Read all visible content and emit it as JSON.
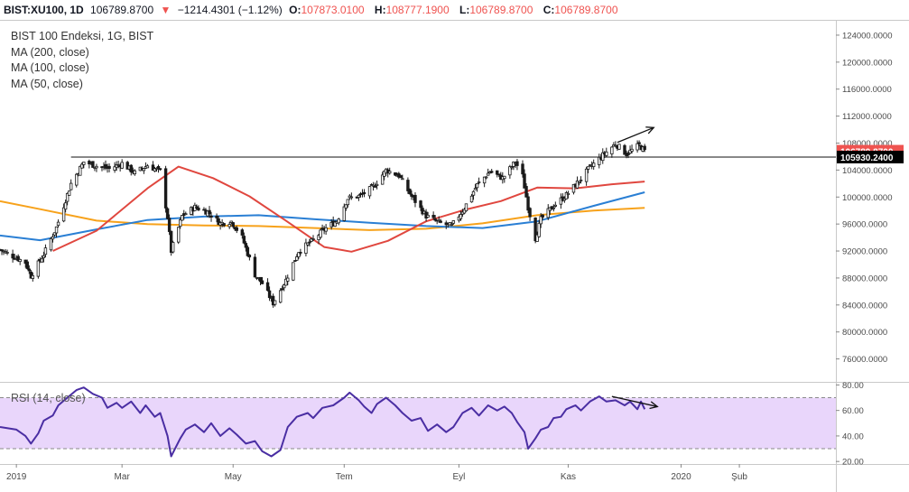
{
  "header": {
    "symbol": "BIST:XU100, 1D",
    "last": "106789.8700",
    "arrow": "▼",
    "change": "−1214.4301 (−1.12%)",
    "open_label": "O:",
    "open": "107873.0100",
    "high_label": "H:",
    "high": "108777.1900",
    "low_label": "L:",
    "low": "106789.8700",
    "close_label": "C:",
    "close": "106789.8700"
  },
  "legend": {
    "title": "BIST 100 Endeksi, 1G, BIST",
    "ma200": "MA (200, close)",
    "ma100": "MA (100, close)",
    "ma50": "MA (50, close)",
    "rsi": "RSI (14, close)"
  },
  "colors": {
    "ma200": "#f7a21b",
    "ma100": "#2a7fd4",
    "ma50": "#e0473f",
    "rsi": "#4a2ea3",
    "rsi_band": "#e9d6fb",
    "up": "#ffffff",
    "down": "#1a1a1a",
    "price_badge": "#ef5350",
    "level_badge": "#000000"
  },
  "chart_data": [
    {
      "type": "candlestick",
      "title": "BIST 100 Endeksi, 1G, BIST",
      "y_ticks": [
        "124000.0000",
        "120000.0000",
        "116000.0000",
        "112000.0000",
        "108000.0000",
        "104000.0000",
        "100000.0000",
        "96000.0000",
        "92000.0000",
        "88000.0000",
        "84000.0000",
        "80000.0000",
        "76000.0000"
      ],
      "y_values": [
        124000,
        120000,
        116000,
        112000,
        108000,
        104000,
        100000,
        96000,
        92000,
        88000,
        84000,
        80000,
        76000
      ],
      "ylim": [
        72600,
        126000
      ],
      "x_ticks": [
        "2019",
        "Mar",
        "May",
        "Tem",
        "Eyl",
        "Kas",
        "2020",
        "Şub"
      ],
      "x_tick_positions": [
        "2019-01-02",
        "2019-03-01",
        "2019-05-01",
        "2019-07-01",
        "2019-09-02",
        "2019-11-01",
        "2020-01-02",
        "2020-02-03"
      ],
      "x_range": [
        "2018-12-24",
        "2020-03-27"
      ],
      "last_price_label": "106789.8700",
      "level_label": "105930.2400",
      "level_value": 105930.24,
      "level_range": [
        "2019-02-01",
        "2020-03-27"
      ],
      "close_series": [
        [
          "2018-12-24",
          92200
        ],
        [
          "2019-01-07",
          90300
        ],
        [
          "2019-01-10",
          88300
        ],
        [
          "2019-01-17",
          91500
        ],
        [
          "2019-01-24",
          95500
        ],
        [
          "2019-02-01",
          102000
        ],
        [
          "2019-02-08",
          105200
        ],
        [
          "2019-02-15",
          104600
        ],
        [
          "2019-02-22",
          104200
        ],
        [
          "2019-03-01",
          105000
        ],
        [
          "2019-03-08",
          103600
        ],
        [
          "2019-03-15",
          104700
        ],
        [
          "2019-03-22",
          103800
        ],
        [
          "2019-03-26",
          97000
        ],
        [
          "2019-03-28",
          92000
        ],
        [
          "2019-04-03",
          97200
        ],
        [
          "2019-04-10",
          98500
        ],
        [
          "2019-04-17",
          97800
        ],
        [
          "2019-04-24",
          96100
        ],
        [
          "2019-04-30",
          96400
        ],
        [
          "2019-05-06",
          94000
        ],
        [
          "2019-05-13",
          88500
        ],
        [
          "2019-05-17",
          87200
        ],
        [
          "2019-05-23",
          84300
        ],
        [
          "2019-05-30",
          87700
        ],
        [
          "2019-06-06",
          92000
        ],
        [
          "2019-06-13",
          93400
        ],
        [
          "2019-06-20",
          95200
        ],
        [
          "2019-06-27",
          96500
        ],
        [
          "2019-07-03",
          99800
        ],
        [
          "2019-07-10",
          100200
        ],
        [
          "2019-07-17",
          101500
        ],
        [
          "2019-07-24",
          104000
        ],
        [
          "2019-07-31",
          103200
        ],
        [
          "2019-08-07",
          100100
        ],
        [
          "2019-08-15",
          97200
        ],
        [
          "2019-08-22",
          96200
        ],
        [
          "2019-08-29",
          95700
        ],
        [
          "2019-09-05",
          98400
        ],
        [
          "2019-09-12",
          101800
        ],
        [
          "2019-09-19",
          103800
        ],
        [
          "2019-09-26",
          102800
        ],
        [
          "2019-10-03",
          105200
        ],
        [
          "2019-10-07",
          103100
        ],
        [
          "2019-10-10",
          98500
        ],
        [
          "2019-10-14",
          93900
        ],
        [
          "2019-10-17",
          96700
        ],
        [
          "2019-10-24",
          98700
        ],
        [
          "2019-10-31",
          100300
        ],
        [
          "2019-11-07",
          102400
        ],
        [
          "2019-11-13",
          104400
        ],
        [
          "2019-11-20",
          106200
        ],
        [
          "2019-11-27",
          107900
        ],
        [
          "2019-12-03",
          106400
        ],
        [
          "2019-12-10",
          107700
        ],
        [
          "2019-12-13",
          106789.87
        ]
      ],
      "ma200": [
        [
          "2018-12-24",
          99400
        ],
        [
          "2019-01-15",
          98200
        ],
        [
          "2019-02-15",
          96500
        ],
        [
          "2019-03-15",
          96000
        ],
        [
          "2019-04-15",
          95800
        ],
        [
          "2019-05-15",
          95700
        ],
        [
          "2019-06-15",
          95400
        ],
        [
          "2019-07-15",
          95100
        ],
        [
          "2019-08-15",
          95300
        ],
        [
          "2019-09-15",
          96100
        ],
        [
          "2019-10-15",
          97300
        ],
        [
          "2019-11-15",
          98000
        ],
        [
          "2019-12-13",
          98400
        ]
      ],
      "ma100": [
        [
          "2018-12-24",
          94300
        ],
        [
          "2019-01-15",
          93600
        ],
        [
          "2019-02-15",
          95200
        ],
        [
          "2019-03-15",
          96600
        ],
        [
          "2019-04-15",
          97100
        ],
        [
          "2019-05-15",
          97300
        ],
        [
          "2019-06-15",
          96700
        ],
        [
          "2019-07-15",
          96200
        ],
        [
          "2019-08-15",
          95700
        ],
        [
          "2019-09-15",
          95400
        ],
        [
          "2019-10-15",
          96400
        ],
        [
          "2019-11-15",
          98700
        ],
        [
          "2019-12-13",
          100700
        ]
      ],
      "ma50": [
        [
          "2019-01-22",
          92000
        ],
        [
          "2019-02-15",
          95000
        ],
        [
          "2019-03-15",
          101300
        ],
        [
          "2019-04-01",
          104500
        ],
        [
          "2019-04-20",
          102800
        ],
        [
          "2019-05-10",
          100100
        ],
        [
          "2019-05-30",
          96500
        ],
        [
          "2019-06-20",
          92600
        ],
        [
          "2019-07-05",
          91900
        ],
        [
          "2019-07-25",
          93500
        ],
        [
          "2019-08-15",
          96400
        ],
        [
          "2019-09-05",
          98100
        ],
        [
          "2019-09-25",
          99400
        ],
        [
          "2019-10-15",
          101400
        ],
        [
          "2019-11-05",
          101300
        ],
        [
          "2019-11-25",
          101900
        ],
        [
          "2019-12-13",
          102300
        ]
      ],
      "trend_arrow": [
        [
          "2019-11-28",
          108100
        ],
        [
          "2019-12-18",
          110300
        ]
      ]
    },
    {
      "type": "line",
      "title": "RSI (14, close)",
      "y_ticks": [
        "80.00",
        "60.00",
        "40.00",
        "20.00"
      ],
      "y_values": [
        80,
        60,
        40,
        20
      ],
      "ylim": [
        18,
        81
      ],
      "band": [
        30,
        70
      ],
      "series": [
        [
          "2018-12-24",
          47
        ],
        [
          "2019-01-02",
          45
        ],
        [
          "2019-01-07",
          40
        ],
        [
          "2019-01-10",
          34
        ],
        [
          "2019-01-14",
          42
        ],
        [
          "2019-01-17",
          52
        ],
        [
          "2019-01-22",
          56
        ],
        [
          "2019-01-25",
          64
        ],
        [
          "2019-01-30",
          70
        ],
        [
          "2019-02-04",
          76
        ],
        [
          "2019-02-08",
          78
        ],
        [
          "2019-02-13",
          73
        ],
        [
          "2019-02-18",
          70
        ],
        [
          "2019-02-21",
          62
        ],
        [
          "2019-02-26",
          66
        ],
        [
          "2019-03-01",
          62
        ],
        [
          "2019-03-06",
          67
        ],
        [
          "2019-03-11",
          58
        ],
        [
          "2019-03-14",
          64
        ],
        [
          "2019-03-19",
          55
        ],
        [
          "2019-03-22",
          58
        ],
        [
          "2019-03-26",
          40
        ],
        [
          "2019-03-28",
          24
        ],
        [
          "2019-04-02",
          38
        ],
        [
          "2019-04-05",
          45
        ],
        [
          "2019-04-10",
          49
        ],
        [
          "2019-04-15",
          43
        ],
        [
          "2019-04-19",
          50
        ],
        [
          "2019-04-24",
          40
        ],
        [
          "2019-04-29",
          46
        ],
        [
          "2019-05-03",
          41
        ],
        [
          "2019-05-08",
          34
        ],
        [
          "2019-05-13",
          36
        ],
        [
          "2019-05-17",
          28
        ],
        [
          "2019-05-22",
          24
        ],
        [
          "2019-05-27",
          29
        ],
        [
          "2019-05-31",
          47
        ],
        [
          "2019-06-05",
          55
        ],
        [
          "2019-06-11",
          58
        ],
        [
          "2019-06-14",
          54
        ],
        [
          "2019-06-19",
          62
        ],
        [
          "2019-06-25",
          64
        ],
        [
          "2019-07-01",
          70
        ],
        [
          "2019-07-04",
          74
        ],
        [
          "2019-07-09",
          68
        ],
        [
          "2019-07-12",
          63
        ],
        [
          "2019-07-16",
          58
        ],
        [
          "2019-07-19",
          65
        ],
        [
          "2019-07-24",
          70
        ],
        [
          "2019-07-29",
          64
        ],
        [
          "2019-08-02",
          58
        ],
        [
          "2019-08-07",
          52
        ],
        [
          "2019-08-12",
          54
        ],
        [
          "2019-08-16",
          44
        ],
        [
          "2019-08-21",
          49
        ],
        [
          "2019-08-26",
          43
        ],
        [
          "2019-08-30",
          47
        ],
        [
          "2019-09-04",
          58
        ],
        [
          "2019-09-09",
          62
        ],
        [
          "2019-09-13",
          56
        ],
        [
          "2019-09-18",
          64
        ],
        [
          "2019-09-23",
          60
        ],
        [
          "2019-09-27",
          63
        ],
        [
          "2019-10-01",
          58
        ],
        [
          "2019-10-04",
          51
        ],
        [
          "2019-10-08",
          43
        ],
        [
          "2019-10-10",
          30
        ],
        [
          "2019-10-14",
          38
        ],
        [
          "2019-10-17",
          45
        ],
        [
          "2019-10-21",
          47
        ],
        [
          "2019-10-24",
          54
        ],
        [
          "2019-10-28",
          55
        ],
        [
          "2019-10-31",
          61
        ],
        [
          "2019-11-05",
          64
        ],
        [
          "2019-11-08",
          60
        ],
        [
          "2019-11-13",
          67
        ],
        [
          "2019-11-18",
          71
        ],
        [
          "2019-11-22",
          67
        ],
        [
          "2019-11-27",
          68
        ],
        [
          "2019-12-02",
          64
        ],
        [
          "2019-12-05",
          67
        ],
        [
          "2019-12-09",
          61
        ],
        [
          "2019-12-11",
          67
        ],
        [
          "2019-12-13",
          61
        ]
      ],
      "trend_arrow": [
        [
          "2019-11-25",
          71
        ],
        [
          "2019-12-20",
          63
        ]
      ]
    }
  ]
}
